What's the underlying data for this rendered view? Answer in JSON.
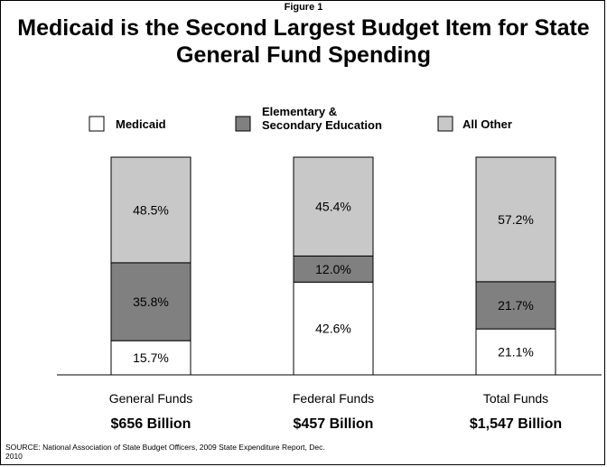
{
  "figure_label": "Figure 1",
  "title": "Medicaid is the Second Largest Budget Item for State General Fund Spending",
  "source": "SOURCE: National Association of State Budget Officers, 2009 State Expenditure Report, Dec. 2010",
  "colors": {
    "medicaid": "#ffffff",
    "education": "#808080",
    "other": "#c8c8c8",
    "stroke": "#000000"
  },
  "chart_data": {
    "type": "bar",
    "stacked": true,
    "normalized": true,
    "title": "Medicaid is the Second Largest Budget Item for State General Fund Spending",
    "categories": [
      "General Funds",
      "Federal Funds",
      "Total Funds"
    ],
    "category_totals": [
      "$656 Billion",
      "$457 Billion",
      "$1,547 Billion"
    ],
    "series": [
      {
        "name": "Medicaid",
        "values": [
          15.7,
          42.6,
          21.1
        ],
        "labels": [
          "15.7%",
          "42.6%",
          "21.1%"
        ]
      },
      {
        "name": "Elementary & Secondary Education",
        "values": [
          35.8,
          12.0,
          21.7
        ],
        "labels": [
          "35.8%",
          "12.0%",
          "21.7%"
        ]
      },
      {
        "name": "All Other",
        "values": [
          48.5,
          45.4,
          57.2
        ],
        "labels": [
          "48.5%",
          "45.4%",
          "57.2%"
        ]
      }
    ],
    "legend_labels": [
      "Medicaid",
      "Elementary &\nSecondary Education",
      "All Other"
    ],
    "ylim": [
      0,
      100
    ],
    "legend_position": "top",
    "grid": false
  }
}
